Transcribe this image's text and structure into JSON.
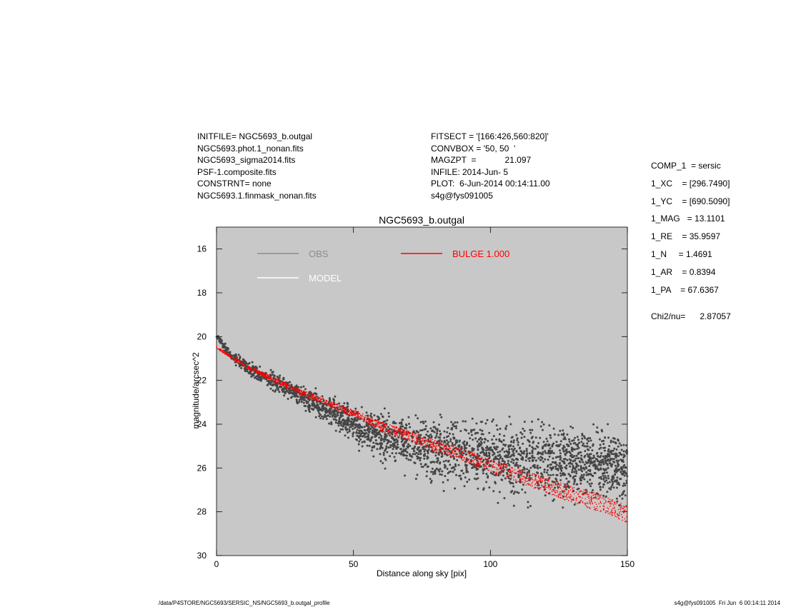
{
  "header_left": [
    "INITFILE= NGC5693_b.outgal",
    "NGC5693.phot.1_nonan.fits",
    "NGC5693_sigma2014.fits",
    "PSF-1.composite.fits",
    "CONSTRNT= none",
    "NGC5693.1.finmask_nonan.fits"
  ],
  "header_mid": [
    "FITSECT = '[166:426,560:820]'",
    "CONVBOX = '50, 50  '",
    "MAGZPT  =            21.097",
    "INFILE: 2014-Jun- 5",
    "PLOT:  6-Jun-2014 00:14:11.00",
    "s4g@fys091005"
  ],
  "header_right": [
    "COMP_1  = sersic",
    "1_XC    = [296.7490]",
    "1_YC    = [690.5090]",
    "1_MAG   = 13.1101",
    "1_RE    = 35.9597",
    "1_N     = 1.4691",
    "1_AR    = 0.8394",
    "1_PA    = 67.6367"
  ],
  "chi2": "Chi2/nu=      2.87057",
  "footer_left": "/data/P4STORE/NGC5693/SERSIC_NS/NGC5693_b.outgal_profile",
  "footer_right": "s4g@fys091005  Fri Jun  6 00:14:11 2014",
  "chart_data": {
    "type": "scatter",
    "title": "NGC5693_b.outgal",
    "xlabel": "Distance along sky [pix]",
    "ylabel": "magnitude/arcsec^2",
    "xlim": [
      0,
      150
    ],
    "ylim": [
      30,
      15
    ],
    "y_inverted": true,
    "x_ticks": [
      0,
      50,
      100,
      150
    ],
    "y_ticks": [
      16,
      18,
      20,
      22,
      24,
      26,
      28,
      30
    ],
    "plot_background": "#c8c8c8",
    "grid": false,
    "legend": [
      {
        "label": "OBS",
        "color": "#8c8c8c"
      },
      {
        "label": "MODEL",
        "color": "#ffffff"
      },
      {
        "label": "BULGE  1.000",
        "color": "#ff0000"
      }
    ],
    "series": [
      {
        "name": "OBS",
        "color": "#454545",
        "x": [
          0,
          5,
          10,
          15,
          20,
          30,
          40,
          50,
          55,
          60,
          70,
          80,
          90,
          100,
          110,
          120,
          130,
          140,
          150
        ],
        "y": [
          20.0,
          20.8,
          21.3,
          21.7,
          22.0,
          22.6,
          23.3,
          24.0,
          24.3,
          24.6,
          24.9,
          25.1,
          25.3,
          25.5,
          25.6,
          25.7,
          25.8,
          25.9,
          26.0
        ],
        "spread": [
          0.1,
          0.2,
          0.3,
          0.35,
          0.4,
          0.45,
          0.55,
          0.7,
          0.8,
          1.0,
          1.2,
          1.3,
          1.4,
          1.5,
          1.5,
          1.5,
          1.5,
          1.5,
          1.5
        ]
      },
      {
        "name": "BULGE  1.000",
        "color": "#ff0000",
        "x": [
          0,
          10,
          20,
          30,
          40,
          50,
          60,
          70,
          80,
          90,
          100,
          110,
          120,
          130,
          140,
          150
        ],
        "y": [
          20.5,
          21.3,
          21.9,
          22.5,
          23.0,
          23.5,
          24.1,
          24.5,
          25.0,
          25.4,
          25.9,
          26.3,
          26.8,
          27.2,
          27.6,
          28.1
        ],
        "spread": [
          0.05,
          0.08,
          0.1,
          0.12,
          0.14,
          0.16,
          0.2,
          0.22,
          0.25,
          0.28,
          0.3,
          0.32,
          0.35,
          0.38,
          0.4,
          0.4
        ]
      }
    ]
  }
}
